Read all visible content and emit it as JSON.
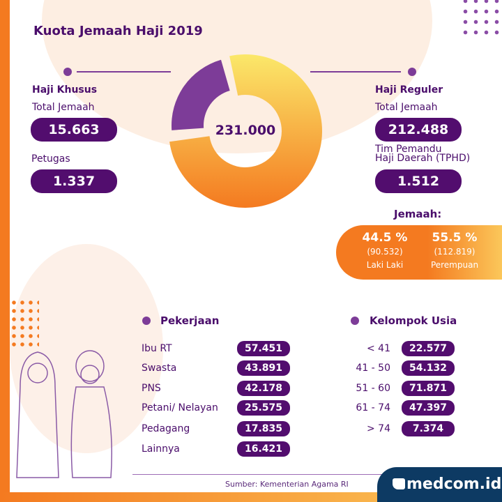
{
  "title": "Kuota Jemaah Haji 2019",
  "khusus": {
    "heading": "Haji Khusus",
    "total_label": "Total Jemaah",
    "total": "15.663",
    "petugas_label": "Petugas",
    "petugas": "1.337"
  },
  "reguler": {
    "heading": "Haji Reguler",
    "total_label": "Total Jemaah",
    "total": "212.488",
    "tphd_label_1": "Tim Pemandu",
    "tphd_label_2": "Haji Daerah (TPHD)",
    "tphd": "1.512"
  },
  "gender": {
    "heading": "Jemaah:",
    "male_pct": "44.5 %",
    "male_count": "(90.532)",
    "male_label": "Laki Laki",
    "female_pct": "55.5 %",
    "female_count": "(112.819)",
    "female_label": "Perempuan"
  },
  "pekerjaan": {
    "heading": "Pekerjaan",
    "items": [
      {
        "label": "Ibu RT",
        "value": "57.451"
      },
      {
        "label": "Swasta",
        "value": "43.891"
      },
      {
        "label": "PNS",
        "value": "42.178"
      },
      {
        "label": "Petani/ Nelayan",
        "value": "25.575"
      },
      {
        "label": "Pedagang",
        "value": "17.835"
      },
      {
        "label": "Lainnya",
        "value": "16.421"
      }
    ]
  },
  "usia": {
    "heading": "Kelompok Usia",
    "items": [
      {
        "label": "< 41",
        "value": "22.577"
      },
      {
        "label": "41 - 50",
        "value": "54.132"
      },
      {
        "label": "51 - 60",
        "value": "71.871"
      },
      {
        "label": "61 - 74",
        "value": "47.397"
      },
      {
        "label": "> 74",
        "value": "7.374"
      }
    ]
  },
  "source": "Sumber: Kementerian Agama RI",
  "logo": "medcom.id",
  "colors": {
    "purple": "#520d6e",
    "orange": "#f47a20",
    "yellow": "#fbe36b"
  },
  "chart_data": {
    "type": "pie",
    "variant": "donut",
    "center_label": "231.000",
    "segments": [
      {
        "name": "Haji Khusus",
        "color": "#7d3c98"
      },
      {
        "name": "Haji Reguler",
        "color": "#f7a23a"
      }
    ]
  }
}
